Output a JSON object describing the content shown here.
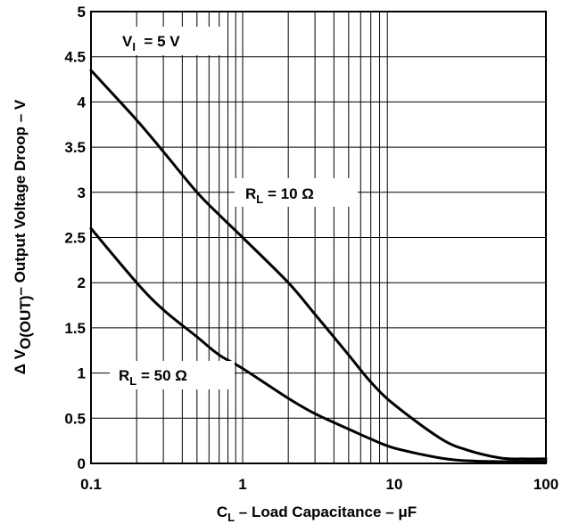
{
  "chart_data": {
    "type": "line",
    "x_scale": "log",
    "xlim": [
      0.1,
      100
    ],
    "ylim": [
      0,
      5
    ],
    "grid": true,
    "xticks": [
      "0.1",
      "1",
      "10",
      "100"
    ],
    "yticks": [
      "0",
      "0.5",
      "1",
      "1.5",
      "2",
      "2.5",
      "3",
      "3.5",
      "4",
      "4.5",
      "5"
    ],
    "xlabel": {
      "main": "C",
      "sub": "L",
      "rest": " – Load Capacitance – μF"
    },
    "ylabel": {
      "pre": "Δ V",
      "sub": "O(OUT)",
      "rest": "– Output Voltage Droop – V"
    },
    "annotations": [
      {
        "main": "V",
        "sub": "I",
        "rest": "  = 5 V"
      },
      {
        "main": "R",
        "sub": "L",
        "rest": " = 10 Ω"
      },
      {
        "main": "R",
        "sub": "L",
        "rest": " = 50 Ω"
      }
    ],
    "series": [
      {
        "name": "R_L = 10 Ω",
        "x": [
          0.1,
          0.2,
          0.3,
          0.5,
          0.7,
          1,
          2,
          3,
          5,
          7,
          10,
          20,
          30,
          50,
          70,
          100
        ],
        "y": [
          4.35,
          3.8,
          3.45,
          3.0,
          2.75,
          2.5,
          2.0,
          1.65,
          1.2,
          0.9,
          0.65,
          0.28,
          0.15,
          0.06,
          0.05,
          0.05
        ]
      },
      {
        "name": "R_L = 50 Ω",
        "x": [
          0.1,
          0.2,
          0.3,
          0.5,
          0.7,
          1,
          2,
          3,
          5,
          7,
          10,
          20,
          30,
          50,
          100
        ],
        "y": [
          2.6,
          2.0,
          1.7,
          1.4,
          1.2,
          1.05,
          0.72,
          0.55,
          0.38,
          0.27,
          0.17,
          0.06,
          0.03,
          0.02,
          0.02
        ]
      }
    ]
  }
}
